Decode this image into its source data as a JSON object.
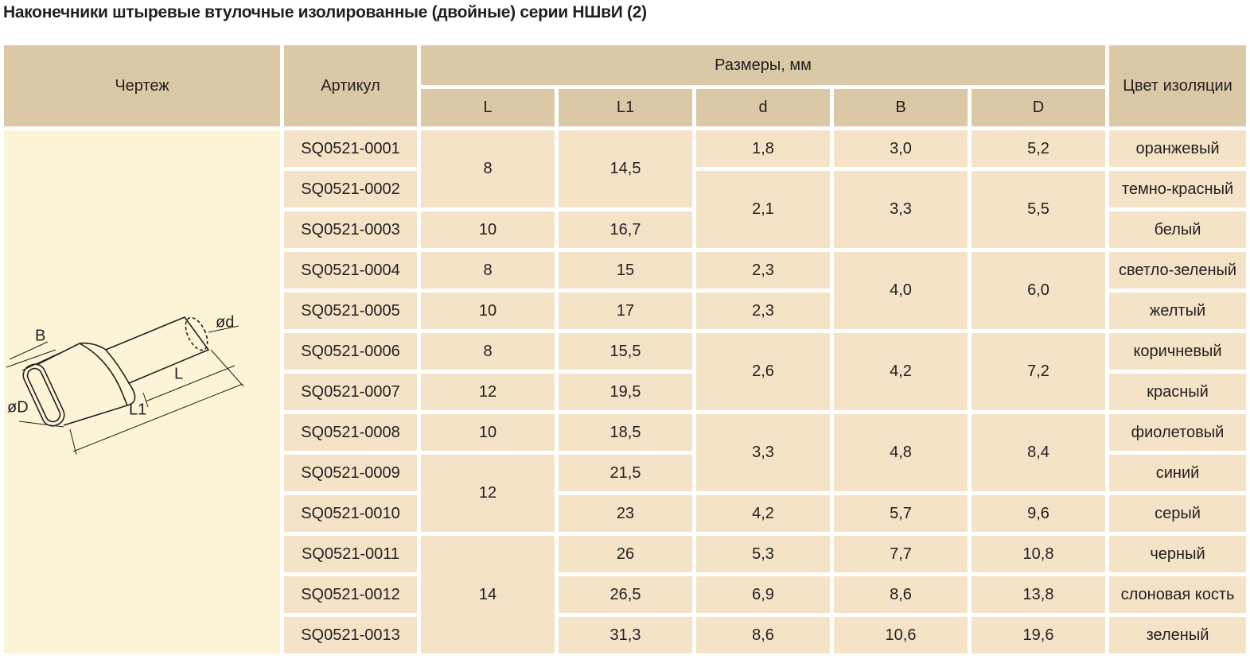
{
  "header": {
    "title": "Наконечники штыревые втулочные изолированные (двойные) серии НШвИ (2)"
  },
  "table": {
    "columns": {
      "drawing": "Чертеж",
      "article": "Артикул",
      "sizes": "Размеры, мм",
      "L": "L",
      "L1": "L1",
      "d": "d",
      "B": "B",
      "D": "D",
      "color": "Цвет изоляции"
    },
    "rows": [
      {
        "article": "SQ0521-0001",
        "L": "8",
        "L1": "14,5",
        "d": "1,8",
        "B": "3,0",
        "D": "5,2",
        "color": "оранжевый"
      },
      {
        "article": "SQ0521-0002",
        "d": "2,1",
        "B": "3,3",
        "D": "5,5",
        "color": "темно-красный"
      },
      {
        "article": "SQ0521-0003",
        "L": "10",
        "L1": "16,7",
        "color": "белый"
      },
      {
        "article": "SQ0521-0004",
        "L": "8",
        "L1": "15",
        "d": "2,3",
        "B": "4,0",
        "D": "6,0",
        "color": "светло-зеленый"
      },
      {
        "article": "SQ0521-0005",
        "L": "10",
        "L1": "17",
        "d": "2,3",
        "color": "желтый"
      },
      {
        "article": "SQ0521-0006",
        "L": "8",
        "L1": "15,5",
        "d": "2,6",
        "B": "4,2",
        "D": "7,2",
        "color": "коричневый"
      },
      {
        "article": "SQ0521-0007",
        "L": "12",
        "L1": "19,5",
        "color": "красный"
      },
      {
        "article": "SQ0521-0008",
        "L": "10",
        "L1": "18,5",
        "d": "3,3",
        "B": "4,8",
        "D": "8,4",
        "color": "фиолетовый"
      },
      {
        "article": "SQ0521-0009",
        "L": "12",
        "L1": "21,5",
        "color": "синий"
      },
      {
        "article": "SQ0521-0010",
        "L1": "23",
        "d": "4,2",
        "B": "5,7",
        "D": "9,6",
        "color": "серый"
      },
      {
        "article": "SQ0521-0011",
        "L": "14",
        "L1": "26",
        "d": "5,3",
        "B": "7,7",
        "D": "10,8",
        "color": "черный"
      },
      {
        "article": "SQ0521-0012",
        "L1": "26,5",
        "d": "6,9",
        "B": "8,6",
        "D": "13,8",
        "color": "слоновая кость"
      },
      {
        "article": "SQ0521-0013",
        "L1": "31,3",
        "d": "8,6",
        "B": "10,6",
        "D": "19,6",
        "color": "зеленый"
      }
    ]
  },
  "drawing": {
    "labels": {
      "B": "B",
      "D": "øD",
      "L1": "L1",
      "L": "L",
      "d": "ød"
    }
  }
}
